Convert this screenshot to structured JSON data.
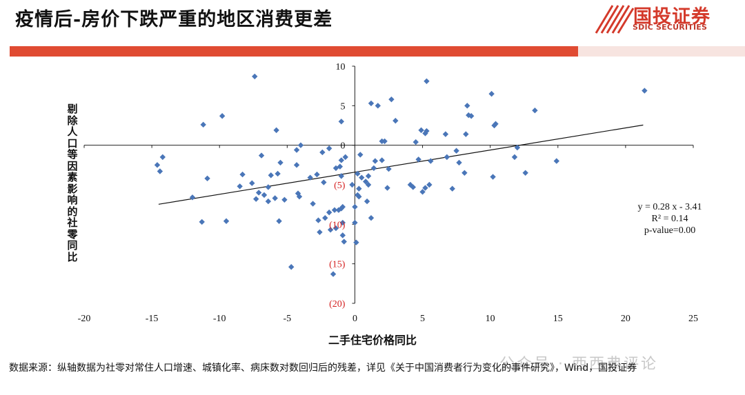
{
  "header": {
    "title": "疫情后-房价下跌严重的地区消费更差",
    "logo_cn": "国投证券",
    "logo_en": "SDIC SECURITIES"
  },
  "colors": {
    "accent": "#e04b32",
    "marker": "#4a76b8",
    "negative_label": "#d42020"
  },
  "chart_data": {
    "type": "scatter",
    "title": "",
    "xlabel": "二手住宅价格同比",
    "ylabel": "剔除人口等因素影响的社零同比",
    "xlim": [
      -20,
      25
    ],
    "ylim": [
      -20,
      10
    ],
    "x_ticks": [
      -20,
      -15,
      -10,
      -5,
      0,
      5,
      10,
      15,
      20,
      25
    ],
    "y_ticks": [
      {
        "value": 10,
        "label": "10"
      },
      {
        "value": 5,
        "label": "5"
      },
      {
        "value": 0,
        "label": "0"
      },
      {
        "value": -5,
        "label": "(5)"
      },
      {
        "value": -10,
        "label": "(10)"
      },
      {
        "value": -15,
        "label": "(15)"
      },
      {
        "value": -20,
        "label": "(20)"
      }
    ],
    "grid": false,
    "trendline": {
      "slope": 0.28,
      "intercept": -3.41,
      "x_range": [
        -14.5,
        21.3
      ]
    },
    "equation_lines": [
      "y = 0.28 x - 3.41",
      "R² = 0.14",
      "p-value=0.00"
    ],
    "points": [
      [
        -14.6,
        -2.5
      ],
      [
        -14.4,
        -3.3
      ],
      [
        -14.2,
        -1.5
      ],
      [
        -11.2,
        2.6
      ],
      [
        -11.3,
        -9.7
      ],
      [
        -10.9,
        -4.2
      ],
      [
        -12,
        -6.6
      ],
      [
        -9.8,
        3.7
      ],
      [
        -9.5,
        -9.6
      ],
      [
        -7.4,
        8.7
      ],
      [
        -6.9,
        -1.3
      ],
      [
        -8.3,
        -3.7
      ],
      [
        -8.5,
        -5.2
      ],
      [
        -7.6,
        -4.8
      ],
      [
        -7.3,
        -6.8
      ],
      [
        -7.1,
        -6.0
      ],
      [
        -6.7,
        -6.3
      ],
      [
        -6.4,
        -5.3
      ],
      [
        -6.2,
        -3.8
      ],
      [
        -6.4,
        -7.1
      ],
      [
        -5.9,
        -6.7
      ],
      [
        -5.8,
        1.9
      ],
      [
        -5.7,
        -3.6
      ],
      [
        -5.5,
        -2.2
      ],
      [
        -5.6,
        -9.6
      ],
      [
        -5.2,
        -6.9
      ],
      [
        -4.7,
        -15.4
      ],
      [
        -4.3,
        -2.5
      ],
      [
        -4.3,
        -0.6
      ],
      [
        -4.0,
        0.0
      ],
      [
        -4.2,
        -6.1
      ],
      [
        -4.1,
        -6.5
      ],
      [
        -3.3,
        -4.1
      ],
      [
        -3.1,
        -7.4
      ],
      [
        -2.8,
        -3.7
      ],
      [
        -2.7,
        -9.5
      ],
      [
        -2.6,
        -11.0
      ],
      [
        -2.4,
        -0.9
      ],
      [
        -2.3,
        -4.7
      ],
      [
        -2.2,
        -9.2
      ],
      [
        -1.9,
        -0.4
      ],
      [
        -1.9,
        -8.5
      ],
      [
        -1.8,
        -10.7
      ],
      [
        -1.6,
        -16.3
      ],
      [
        -1.5,
        -8.2
      ],
      [
        -1.4,
        -10.5
      ],
      [
        -1.4,
        -2.9
      ],
      [
        -1.2,
        -8.2
      ],
      [
        -1.1,
        -2.7
      ],
      [
        -1.0,
        -3.9
      ],
      [
        -1.0,
        -1.9
      ],
      [
        -1.0,
        -8.0
      ],
      [
        -0.9,
        -7.8
      ],
      [
        -0.9,
        -9.8
      ],
      [
        -0.9,
        -11.4
      ],
      [
        -0.8,
        -12.2
      ],
      [
        -0.7,
        -1.5
      ],
      [
        -1.0,
        3.0
      ],
      [
        -0.2,
        -5.0
      ],
      [
        0.1,
        -12.3
      ],
      [
        0.0,
        -7.8
      ],
      [
        0.0,
        -9.8
      ],
      [
        0.2,
        -6.3
      ],
      [
        0.3,
        -6.5
      ],
      [
        0.2,
        -3.6
      ],
      [
        0.3,
        -5.5
      ],
      [
        0.4,
        -1.2
      ],
      [
        0.5,
        -4.1
      ],
      [
        0.8,
        -4.6
      ],
      [
        0.9,
        -7.1
      ],
      [
        1.0,
        -3.9
      ],
      [
        1.0,
        -5.0
      ],
      [
        1.2,
        -9.2
      ],
      [
        1.2,
        5.3
      ],
      [
        1.4,
        -2.9
      ],
      [
        1.5,
        -2.0
      ],
      [
        1.7,
        5.0
      ],
      [
        2.0,
        -1.9
      ],
      [
        2.0,
        0.5
      ],
      [
        2.2,
        0.5
      ],
      [
        2.4,
        -5.4
      ],
      [
        2.5,
        -3.0
      ],
      [
        2.7,
        5.8
      ],
      [
        3.0,
        3.1
      ],
      [
        4.1,
        -5.0
      ],
      [
        4.3,
        -5.3
      ],
      [
        4.5,
        0.4
      ],
      [
        4.7,
        -1.8
      ],
      [
        4.9,
        1.9
      ],
      [
        5.0,
        -5.9
      ],
      [
        5.2,
        -5.4
      ],
      [
        5.2,
        1.5
      ],
      [
        5.3,
        1.8
      ],
      [
        5.3,
        8.1
      ],
      [
        5.5,
        -5.0
      ],
      [
        5.6,
        -2.0
      ],
      [
        6.7,
        1.4
      ],
      [
        6.8,
        -1.5
      ],
      [
        7.2,
        -5.5
      ],
      [
        7.5,
        -0.7
      ],
      [
        7.7,
        -2.2
      ],
      [
        8.1,
        -3.5
      ],
      [
        8.2,
        1.4
      ],
      [
        8.3,
        5.0
      ],
      [
        8.4,
        3.8
      ],
      [
        8.6,
        3.7
      ],
      [
        10.1,
        6.5
      ],
      [
        10.2,
        -4.0
      ],
      [
        10.3,
        2.5
      ],
      [
        10.4,
        2.7
      ],
      [
        11.8,
        -1.5
      ],
      [
        12.0,
        -0.3
      ],
      [
        12.6,
        -3.5
      ],
      [
        13.3,
        4.4
      ],
      [
        14.9,
        -2.0
      ],
      [
        21.4,
        6.9
      ]
    ]
  },
  "footer": {
    "source": "数据来源：纵轴数据为社零对常住人口增速、城镇化率、病床数对数回归后的残差，详见《关于中国消费者行为变化的事件研究》，Wind，国投证券",
    "watermark": "公众号 · 西西弗评论"
  }
}
